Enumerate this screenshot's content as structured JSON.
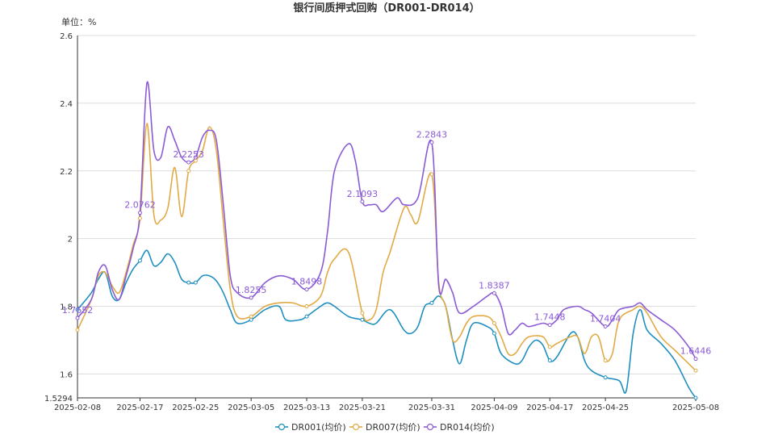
{
  "chart_data": {
    "type": "line",
    "title": "银行间质押式回购（DR001-DR014）",
    "unit_label": "单位：%",
    "ylim": [
      1.5294,
      2.6
    ],
    "yticks": [
      1.5294,
      1.6,
      1.8,
      2,
      2.2,
      2.4,
      2.6
    ],
    "ytick_labels": [
      "1.5294",
      "1.6",
      "1.8",
      "2",
      "2.2",
      "2.4",
      "2.6"
    ],
    "xlim": [
      "2025-02-08",
      "2025-05-08"
    ],
    "xticks": [
      "2025-02-08",
      "2025-02-17",
      "2025-02-25",
      "2025-03-05",
      "2025-03-13",
      "2025-03-21",
      "2025-03-31",
      "2025-04-09",
      "2025-04-17",
      "2025-04-25",
      "2025-05-08"
    ],
    "grid": "horizontal",
    "legend_position": "bottom-center",
    "series": [
      {
        "name": "DR001(均价)",
        "color": "#1e8fbf",
        "points": [
          [
            "2025-02-08",
            1.79
          ],
          [
            "2025-02-10",
            1.84
          ],
          [
            "2025-02-11",
            1.88
          ],
          [
            "2025-02-12",
            1.9
          ],
          [
            "2025-02-13",
            1.83
          ],
          [
            "2025-02-14",
            1.82
          ],
          [
            "2025-02-15",
            1.87
          ],
          [
            "2025-02-16",
            1.91
          ],
          [
            "2025-02-17",
            1.935
          ],
          [
            "2025-02-18",
            1.965
          ],
          [
            "2025-02-19",
            1.92
          ],
          [
            "2025-02-20",
            1.93
          ],
          [
            "2025-02-21",
            1.955
          ],
          [
            "2025-02-22",
            1.93
          ],
          [
            "2025-02-23",
            1.88
          ],
          [
            "2025-02-24",
            1.87
          ],
          [
            "2025-02-25",
            1.87
          ],
          [
            "2025-02-26",
            1.89
          ],
          [
            "2025-02-27",
            1.89
          ],
          [
            "2025-02-28",
            1.875
          ],
          [
            "2025-03-01",
            1.84
          ],
          [
            "2025-03-02",
            1.79
          ],
          [
            "2025-03-03",
            1.75
          ],
          [
            "2025-03-05",
            1.76
          ],
          [
            "2025-03-07",
            1.79
          ],
          [
            "2025-03-09",
            1.8
          ],
          [
            "2025-03-10",
            1.76
          ],
          [
            "2025-03-12",
            1.76
          ],
          [
            "2025-03-13",
            1.77
          ],
          [
            "2025-03-15",
            1.8
          ],
          [
            "2025-03-16",
            1.81
          ],
          [
            "2025-03-17",
            1.8
          ],
          [
            "2025-03-19",
            1.77
          ],
          [
            "2025-03-21",
            1.76
          ],
          [
            "2025-03-22",
            1.75
          ],
          [
            "2025-03-23",
            1.75
          ],
          [
            "2025-03-25",
            1.79
          ],
          [
            "2025-03-27",
            1.73
          ],
          [
            "2025-03-28",
            1.72
          ],
          [
            "2025-03-29",
            1.74
          ],
          [
            "2025-03-30",
            1.8
          ],
          [
            "2025-03-31",
            1.81
          ],
          [
            "2025-04-01",
            1.83
          ],
          [
            "2025-04-02",
            1.8
          ],
          [
            "2025-04-03",
            1.7
          ],
          [
            "2025-04-04",
            1.63
          ],
          [
            "2025-04-05",
            1.7
          ],
          [
            "2025-04-06",
            1.75
          ],
          [
            "2025-04-08",
            1.74
          ],
          [
            "2025-04-09",
            1.72
          ],
          [
            "2025-04-10",
            1.66
          ],
          [
            "2025-04-12",
            1.63
          ],
          [
            "2025-04-13",
            1.64
          ],
          [
            "2025-04-14",
            1.68
          ],
          [
            "2025-04-15",
            1.7
          ],
          [
            "2025-04-16",
            1.685
          ],
          [
            "2025-04-17",
            1.64
          ],
          [
            "2025-04-18",
            1.65
          ],
          [
            "2025-04-20",
            1.72
          ],
          [
            "2025-04-21",
            1.71
          ],
          [
            "2025-04-22",
            1.64
          ],
          [
            "2025-04-23",
            1.61
          ],
          [
            "2025-04-25",
            1.59
          ],
          [
            "2025-04-27",
            1.58
          ],
          [
            "2025-04-28",
            1.55
          ],
          [
            "2025-04-29",
            1.72
          ],
          [
            "2025-04-30",
            1.79
          ],
          [
            "2025-05-01",
            1.73
          ],
          [
            "2025-05-03",
            1.69
          ],
          [
            "2025-05-05",
            1.64
          ],
          [
            "2025-05-07",
            1.56
          ],
          [
            "2025-05-08",
            1.5294
          ]
        ]
      },
      {
        "name": "DR007(均价)",
        "color": "#e1aa44",
        "points": [
          [
            "2025-02-08",
            1.73
          ],
          [
            "2025-02-10",
            1.82
          ],
          [
            "2025-02-11",
            1.89
          ],
          [
            "2025-02-12",
            1.9
          ],
          [
            "2025-02-13",
            1.86
          ],
          [
            "2025-02-14",
            1.84
          ],
          [
            "2025-02-15",
            1.9
          ],
          [
            "2025-02-16",
            1.98
          ],
          [
            "2025-02-17",
            2.06
          ],
          [
            "2025-02-18",
            2.34
          ],
          [
            "2025-02-19",
            2.07
          ],
          [
            "2025-02-20",
            2.055
          ],
          [
            "2025-02-21",
            2.09
          ],
          [
            "2025-02-22",
            2.21
          ],
          [
            "2025-02-23",
            2.065
          ],
          [
            "2025-02-24",
            2.2
          ],
          [
            "2025-02-25",
            2.23
          ],
          [
            "2025-02-26",
            2.26
          ],
          [
            "2025-02-27",
            2.33
          ],
          [
            "2025-02-28",
            2.26
          ],
          [
            "2025-03-01",
            2.05
          ],
          [
            "2025-03-02",
            1.85
          ],
          [
            "2025-03-03",
            1.77
          ],
          [
            "2025-03-05",
            1.77
          ],
          [
            "2025-03-07",
            1.8
          ],
          [
            "2025-03-09",
            1.81
          ],
          [
            "2025-03-11",
            1.81
          ],
          [
            "2025-03-13",
            1.8
          ],
          [
            "2025-03-15",
            1.83
          ],
          [
            "2025-03-16",
            1.9
          ],
          [
            "2025-03-17",
            1.94
          ],
          [
            "2025-03-19",
            1.96
          ],
          [
            "2025-03-21",
            1.78
          ],
          [
            "2025-03-22",
            1.76
          ],
          [
            "2025-03-23",
            1.79
          ],
          [
            "2025-03-24",
            1.9
          ],
          [
            "2025-03-25",
            1.96
          ],
          [
            "2025-03-27",
            2.09
          ],
          [
            "2025-03-28",
            2.07
          ],
          [
            "2025-03-29",
            2.05
          ],
          [
            "2025-03-31",
            2.19
          ],
          [
            "2025-04-01",
            1.87
          ],
          [
            "2025-04-02",
            1.8
          ],
          [
            "2025-04-03",
            1.7
          ],
          [
            "2025-04-04",
            1.71
          ],
          [
            "2025-04-05",
            1.75
          ],
          [
            "2025-04-06",
            1.77
          ],
          [
            "2025-04-08",
            1.77
          ],
          [
            "2025-04-09",
            1.75
          ],
          [
            "2025-04-10",
            1.71
          ],
          [
            "2025-04-11",
            1.66
          ],
          [
            "2025-04-12",
            1.66
          ],
          [
            "2025-04-13",
            1.69
          ],
          [
            "2025-04-14",
            1.71
          ],
          [
            "2025-04-16",
            1.71
          ],
          [
            "2025-04-17",
            1.68
          ],
          [
            "2025-04-18",
            1.69
          ],
          [
            "2025-04-20",
            1.71
          ],
          [
            "2025-04-21",
            1.71
          ],
          [
            "2025-04-22",
            1.66
          ],
          [
            "2025-04-23",
            1.71
          ],
          [
            "2025-04-24",
            1.71
          ],
          [
            "2025-04-25",
            1.64
          ],
          [
            "2025-04-26",
            1.66
          ],
          [
            "2025-04-27",
            1.76
          ],
          [
            "2025-04-29",
            1.79
          ],
          [
            "2025-04-30",
            1.8
          ],
          [
            "2025-05-01",
            1.78
          ],
          [
            "2025-05-03",
            1.71
          ],
          [
            "2025-05-05",
            1.67
          ],
          [
            "2025-05-07",
            1.63
          ],
          [
            "2025-05-08",
            1.61
          ]
        ]
      },
      {
        "name": "DR014(均价)",
        "color": "#8b5bd6",
        "points": [
          [
            "2025-02-08",
            1.7652
          ],
          [
            "2025-02-10",
            1.82
          ],
          [
            "2025-02-11",
            1.9
          ],
          [
            "2025-02-12",
            1.92
          ],
          [
            "2025-02-13",
            1.85
          ],
          [
            "2025-02-14",
            1.82
          ],
          [
            "2025-02-15",
            1.89
          ],
          [
            "2025-02-16",
            1.97
          ],
          [
            "2025-02-17",
            2.0762
          ],
          [
            "2025-02-18",
            2.46
          ],
          [
            "2025-02-19",
            2.26
          ],
          [
            "2025-02-20",
            2.24
          ],
          [
            "2025-02-21",
            2.33
          ],
          [
            "2025-02-22",
            2.29
          ],
          [
            "2025-02-23",
            2.24
          ],
          [
            "2025-02-24",
            2.2253
          ],
          [
            "2025-02-25",
            2.24
          ],
          [
            "2025-02-26",
            2.3
          ],
          [
            "2025-02-27",
            2.32
          ],
          [
            "2025-02-28",
            2.29
          ],
          [
            "2025-03-01",
            2.1
          ],
          [
            "2025-03-02",
            1.89
          ],
          [
            "2025-03-03",
            1.84
          ],
          [
            "2025-03-05",
            1.8255
          ],
          [
            "2025-03-07",
            1.87
          ],
          [
            "2025-03-09",
            1.89
          ],
          [
            "2025-03-11",
            1.88
          ],
          [
            "2025-03-13",
            1.8498
          ],
          [
            "2025-03-15",
            1.9
          ],
          [
            "2025-03-16",
            2.02
          ],
          [
            "2025-03-17",
            2.2
          ],
          [
            "2025-03-19",
            2.28
          ],
          [
            "2025-03-20",
            2.23
          ],
          [
            "2025-03-21",
            2.1093
          ],
          [
            "2025-03-22",
            2.1
          ],
          [
            "2025-03-23",
            2.1
          ],
          [
            "2025-03-24",
            2.08
          ],
          [
            "2025-03-26",
            2.12
          ],
          [
            "2025-03-27",
            2.1
          ],
          [
            "2025-03-29",
            2.12
          ],
          [
            "2025-03-31",
            2.2843
          ],
          [
            "2025-04-01",
            1.86
          ],
          [
            "2025-04-02",
            1.88
          ],
          [
            "2025-04-03",
            1.84
          ],
          [
            "2025-04-04",
            1.78
          ],
          [
            "2025-04-06",
            1.8
          ],
          [
            "2025-04-08",
            1.83
          ],
          [
            "2025-04-09",
            1.8387
          ],
          [
            "2025-04-10",
            1.8
          ],
          [
            "2025-04-11",
            1.72
          ],
          [
            "2025-04-12",
            1.73
          ],
          [
            "2025-04-13",
            1.75
          ],
          [
            "2025-04-14",
            1.74
          ],
          [
            "2025-04-16",
            1.75
          ],
          [
            "2025-04-17",
            1.7448
          ],
          [
            "2025-04-18",
            1.76
          ],
          [
            "2025-04-19",
            1.79
          ],
          [
            "2025-04-21",
            1.8
          ],
          [
            "2025-04-22",
            1.79
          ],
          [
            "2025-04-23",
            1.78
          ],
          [
            "2025-04-25",
            1.7404
          ],
          [
            "2025-04-26",
            1.76
          ],
          [
            "2025-04-27",
            1.79
          ],
          [
            "2025-04-29",
            1.8
          ],
          [
            "2025-04-30",
            1.81
          ],
          [
            "2025-05-01",
            1.79
          ],
          [
            "2025-05-03",
            1.76
          ],
          [
            "2025-05-05",
            1.73
          ],
          [
            "2025-05-07",
            1.68
          ],
          [
            "2025-05-08",
            1.6446
          ]
        ],
        "data_labels": [
          [
            "2025-02-08",
            1.7652,
            "1.7652"
          ],
          [
            "2025-02-17",
            2.0762,
            "2.0762"
          ],
          [
            "2025-02-24",
            2.2253,
            "2.2253"
          ],
          [
            "2025-03-05",
            1.8255,
            "1.8255"
          ],
          [
            "2025-03-13",
            1.8498,
            "1.8498"
          ],
          [
            "2025-03-21",
            2.1093,
            "2.1093"
          ],
          [
            "2025-03-31",
            2.2843,
            "2.2843"
          ],
          [
            "2025-04-09",
            1.8387,
            "1.8387"
          ],
          [
            "2025-04-17",
            1.7448,
            "1.7448"
          ],
          [
            "2025-04-25",
            1.7404,
            "1.7404"
          ],
          [
            "2025-05-08",
            1.6446,
            "1.6446"
          ]
        ]
      }
    ]
  }
}
